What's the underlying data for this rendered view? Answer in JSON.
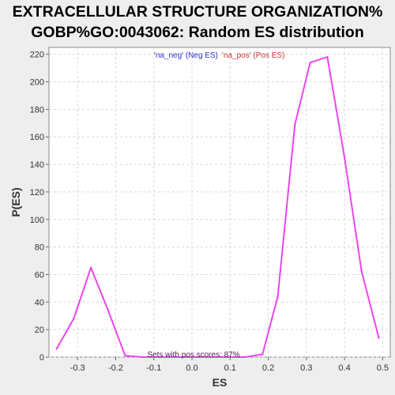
{
  "chart_data": {
    "type": "line",
    "title_line1": "EXTRACELLULAR STRUCTURE ORGANIZATION%",
    "title_line2": "GOBP%GO:0043062: Random ES distribution",
    "xlabel": "ES",
    "ylabel": "P(ES)",
    "xlim": [
      -0.375,
      0.52
    ],
    "ylim": [
      0,
      225
    ],
    "xticks": [
      -0.3,
      -0.2,
      -0.1,
      0.0,
      0.1,
      0.2,
      0.3,
      0.4,
      0.5
    ],
    "xtick_labels": [
      "-0.3",
      "-0.2",
      "-0.1",
      "0.0",
      "0.1",
      "0.2",
      "0.3",
      "0.4",
      "0.5"
    ],
    "yticks": [
      0,
      20,
      40,
      60,
      80,
      100,
      120,
      140,
      160,
      180,
      200,
      220
    ],
    "ytick_labels": [
      "0",
      "20",
      "40",
      "60",
      "80",
      "100",
      "120",
      "140",
      "160",
      "180",
      "200",
      "220"
    ],
    "grid": true,
    "legend_placement": "top-center",
    "legend": [
      {
        "label": "'na_neg' (Neg ES)",
        "color": "#3333cc"
      },
      {
        "label": "'na_pos' (Pos ES)",
        "color": "#cc3333"
      }
    ],
    "annotation": "Sets with pos scores: 87%",
    "series": [
      {
        "color": "#ee44ee",
        "x": [
          -0.355,
          -0.31,
          -0.265,
          -0.22,
          -0.175,
          -0.13,
          -0.085,
          -0.04,
          0.005,
          0.05,
          0.095,
          0.14,
          0.185,
          0.225,
          0.27,
          0.31,
          0.355,
          0.4,
          0.445,
          0.49
        ],
        "y": [
          6,
          28,
          65,
          34,
          1,
          0,
          0,
          0,
          0,
          0,
          0,
          0,
          2,
          44,
          169,
          214,
          218,
          145,
          62,
          14
        ]
      }
    ]
  }
}
